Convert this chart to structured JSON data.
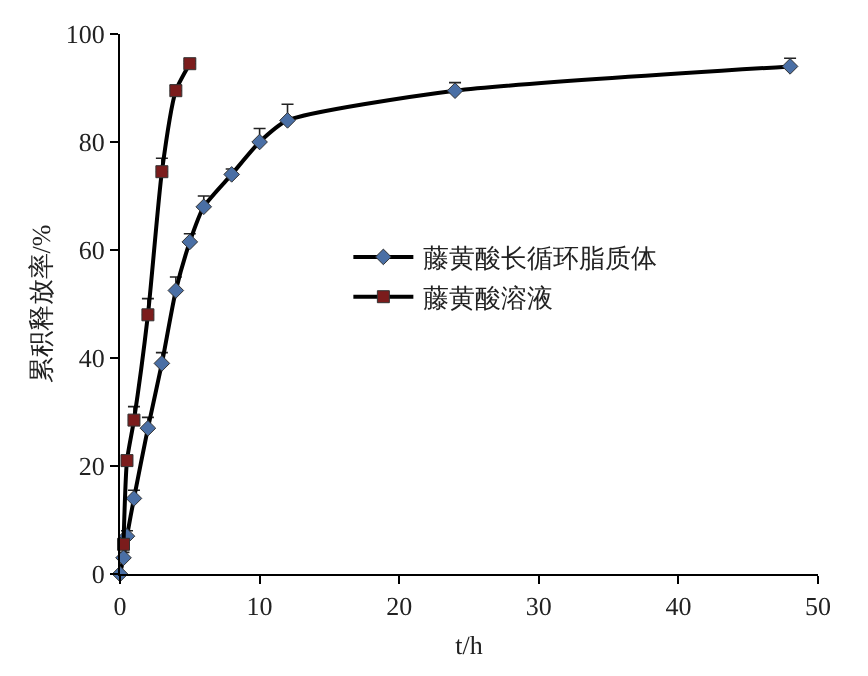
{
  "chart_data": {
    "type": "line",
    "xlabel": "t/h",
    "ylabel": "累积释放率/%",
    "xlim": [
      0,
      50
    ],
    "xticks": [
      0,
      10,
      20,
      30,
      40,
      50
    ],
    "ylim": [
      0,
      100
    ],
    "yticks": [
      0,
      20,
      40,
      60,
      80,
      100
    ],
    "legend": "right",
    "line_style": "solid",
    "series": [
      {
        "name": "藤黄酸长循环脂质体",
        "color": "#4a6fa5",
        "marker": "diamond",
        "x": [
          0,
          0.25,
          0.5,
          1,
          2,
          3,
          4,
          5,
          6,
          8,
          10,
          12,
          24,
          48
        ],
        "values": [
          0,
          3,
          7,
          14,
          27,
          39,
          52.5,
          61.5,
          68,
          74,
          80,
          84,
          89.5,
          94
        ],
        "errors": [
          null,
          1,
          1,
          1.5,
          2,
          2,
          2.5,
          1.5,
          2,
          1,
          2.5,
          3,
          1.5,
          1.5
        ]
      },
      {
        "name": "藤黄酸溶液",
        "color": "#7b1c1c",
        "marker": "square",
        "x": [
          0.25,
          0.5,
          1,
          2,
          3,
          4,
          5
        ],
        "values": [
          5.5,
          21,
          28.5,
          48,
          74.5,
          89.5,
          94.5
        ],
        "errors": [
          null,
          null,
          2.5,
          3,
          2.5,
          1,
          0.5
        ]
      }
    ]
  }
}
